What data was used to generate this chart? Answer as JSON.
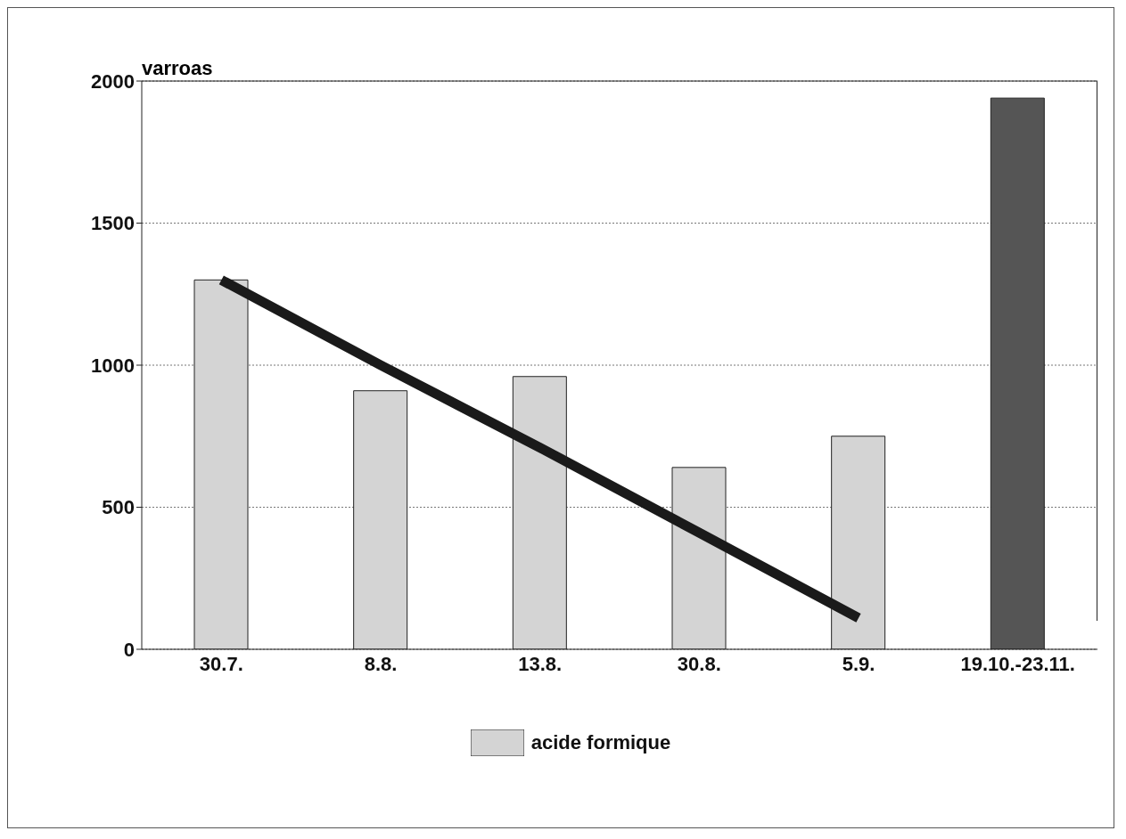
{
  "chart_data": {
    "type": "bar",
    "ylabel": "varroas",
    "categories": [
      "30.7.",
      "8.8.",
      "13.8.",
      "30.8.",
      "5.9.",
      "19.10.-23.11."
    ],
    "series": [
      {
        "name": "acide formique",
        "color": "#d4d4d4",
        "values": [
          1300,
          910,
          960,
          640,
          750,
          null
        ]
      },
      {
        "color": "#555555",
        "values": [
          null,
          null,
          null,
          null,
          null,
          1940
        ]
      },
      {
        "type": "line",
        "color": "#1a1a1a",
        "values": [
          1300,
          1000,
          710,
          410,
          110,
          null
        ]
      }
    ],
    "ylim": [
      0,
      2000
    ],
    "yticks": [
      0,
      500,
      1000,
      1500,
      2000
    ],
    "grid": "y",
    "legend": "bottom"
  }
}
